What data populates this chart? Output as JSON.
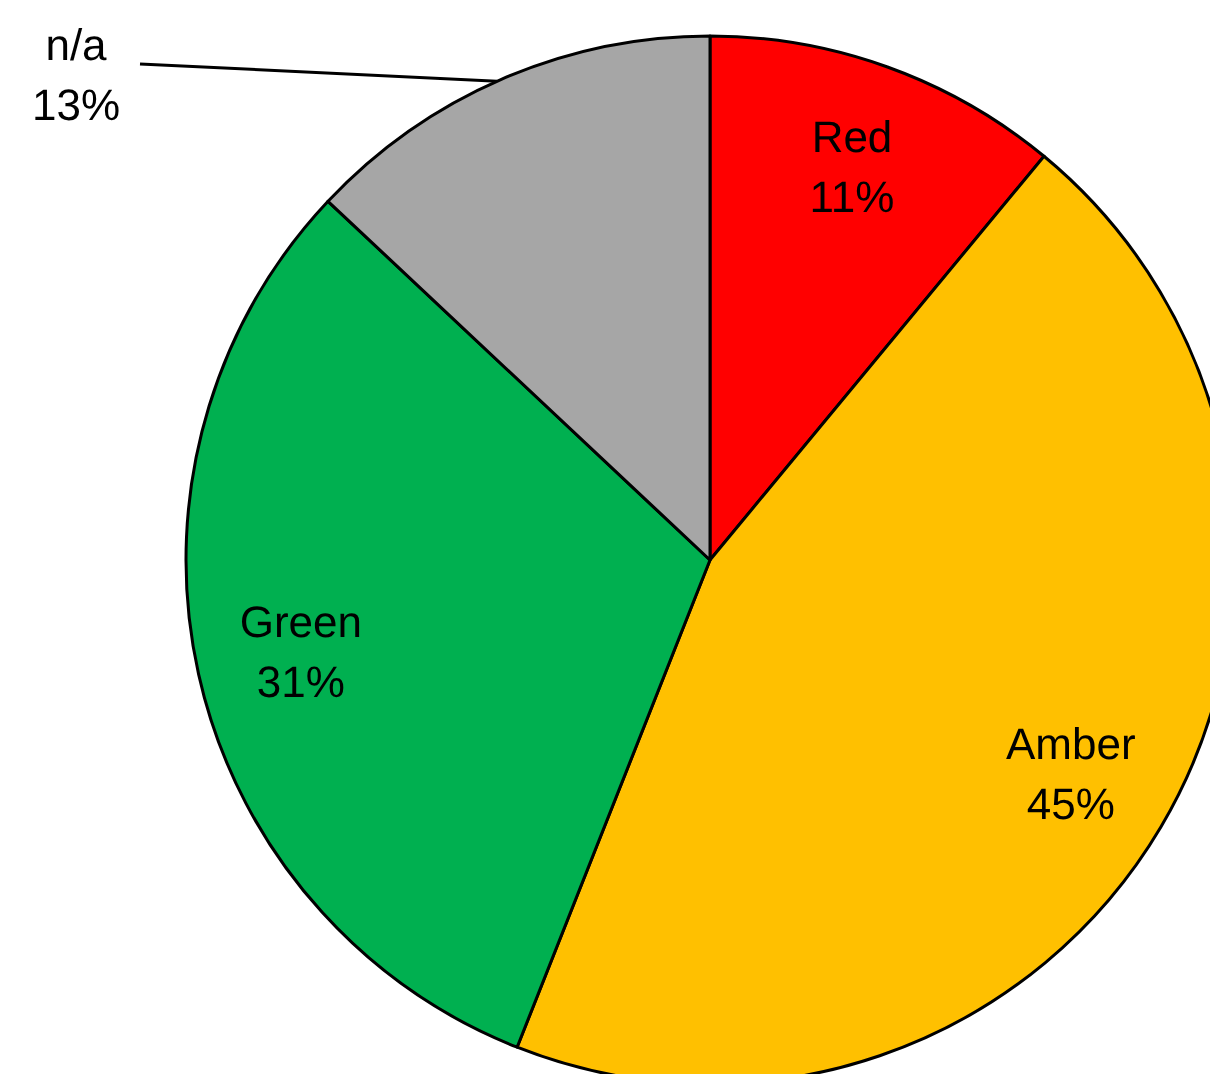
{
  "chart_data": {
    "type": "pie",
    "categories": [
      "Red",
      "Amber",
      "Green",
      "n/a"
    ],
    "values": [
      11,
      45,
      31,
      13
    ],
    "colors": [
      "#ff0000",
      "#ffc000",
      "#00b050",
      "#a6a6a6"
    ],
    "value_labels": [
      "11%",
      "45%",
      "31%",
      "13%"
    ]
  }
}
